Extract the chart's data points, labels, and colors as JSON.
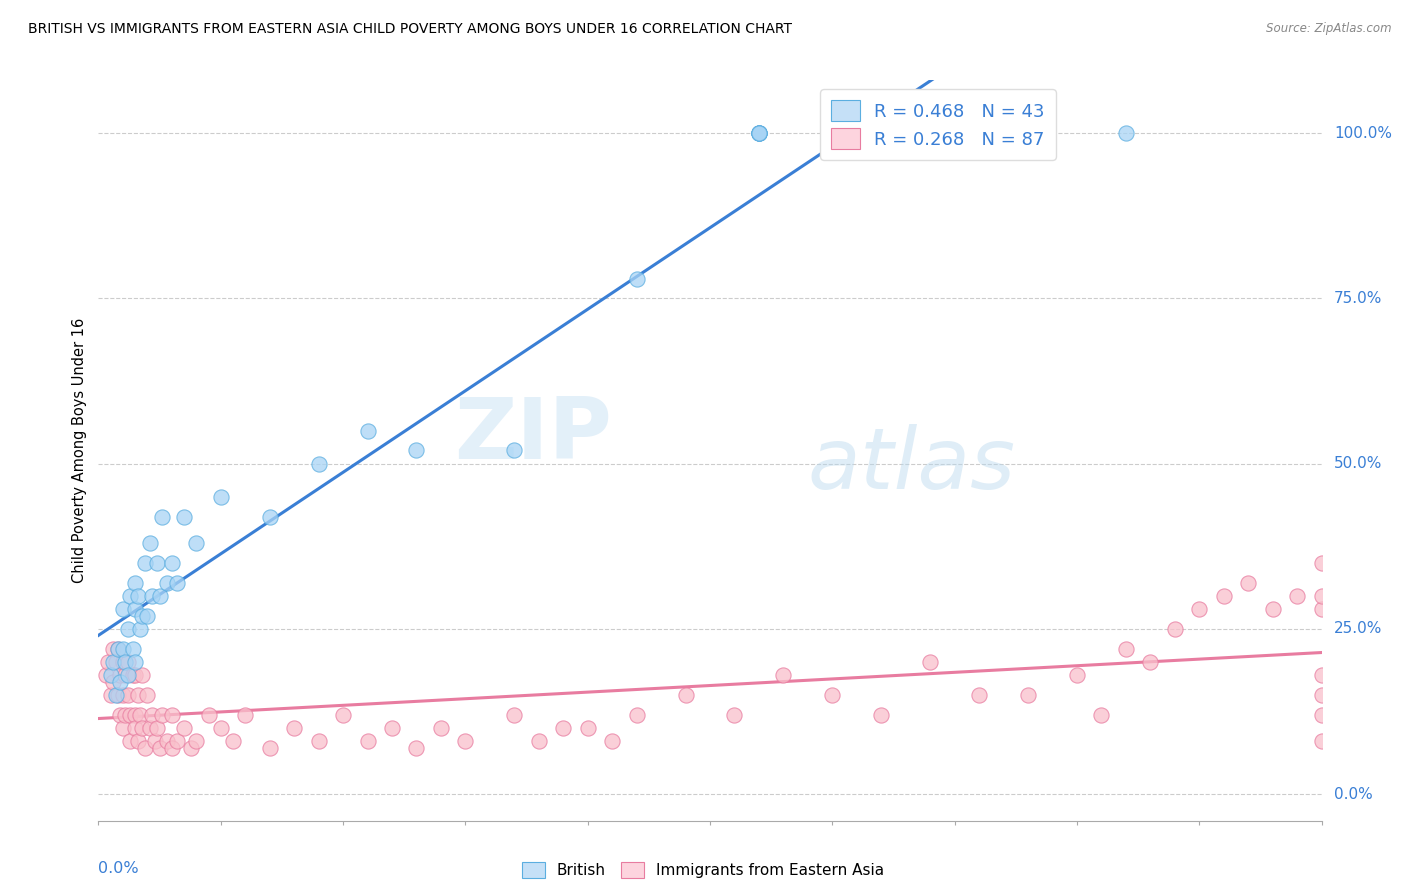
{
  "title": "BRITISH VS IMMIGRANTS FROM EASTERN ASIA CHILD POVERTY AMONG BOYS UNDER 16 CORRELATION CHART",
  "source": "Source: ZipAtlas.com",
  "ylabel": "Child Poverty Among Boys Under 16",
  "ylabel_right_ticks": [
    "0.0%",
    "25.0%",
    "50.0%",
    "75.0%",
    "100.0%"
  ],
  "ylabel_right_vals": [
    0.0,
    0.25,
    0.5,
    0.75,
    1.0
  ],
  "british_R": 0.468,
  "british_N": 43,
  "immigrants_R": 0.268,
  "immigrants_N": 87,
  "british_color": "#a8d4f5",
  "immigrants_color": "#f9c0cb",
  "british_edge_color": "#5baee0",
  "immigrants_edge_color": "#e87ca0",
  "british_line_color": "#3a7fd5",
  "immigrants_line_color": "#e87ca0",
  "watermark_zip": "ZIP",
  "watermark_atlas": "atlas",
  "xlim": [
    0.0,
    0.5
  ],
  "ylim": [
    -0.04,
    1.08
  ],
  "british_scatter_x": [
    0.005,
    0.006,
    0.007,
    0.008,
    0.009,
    0.01,
    0.01,
    0.011,
    0.012,
    0.012,
    0.013,
    0.014,
    0.015,
    0.015,
    0.015,
    0.016,
    0.017,
    0.018,
    0.019,
    0.02,
    0.021,
    0.022,
    0.024,
    0.025,
    0.026,
    0.028,
    0.03,
    0.032,
    0.035,
    0.04,
    0.05,
    0.07,
    0.09,
    0.11,
    0.13,
    0.17,
    0.22,
    0.27,
    0.27,
    0.27,
    0.27,
    0.27,
    0.42
  ],
  "british_scatter_y": [
    0.18,
    0.2,
    0.15,
    0.22,
    0.17,
    0.22,
    0.28,
    0.2,
    0.25,
    0.18,
    0.3,
    0.22,
    0.28,
    0.32,
    0.2,
    0.3,
    0.25,
    0.27,
    0.35,
    0.27,
    0.38,
    0.3,
    0.35,
    0.3,
    0.42,
    0.32,
    0.35,
    0.32,
    0.42,
    0.38,
    0.45,
    0.42,
    0.5,
    0.55,
    0.52,
    0.52,
    0.78,
    1.0,
    1.0,
    1.0,
    1.0,
    1.0,
    1.0
  ],
  "immigrants_scatter_x": [
    0.003,
    0.004,
    0.005,
    0.006,
    0.006,
    0.007,
    0.008,
    0.008,
    0.009,
    0.009,
    0.01,
    0.01,
    0.01,
    0.011,
    0.011,
    0.012,
    0.012,
    0.013,
    0.013,
    0.014,
    0.015,
    0.015,
    0.015,
    0.016,
    0.016,
    0.017,
    0.018,
    0.018,
    0.019,
    0.02,
    0.021,
    0.022,
    0.023,
    0.024,
    0.025,
    0.026,
    0.028,
    0.03,
    0.03,
    0.032,
    0.035,
    0.038,
    0.04,
    0.045,
    0.05,
    0.055,
    0.06,
    0.07,
    0.08,
    0.09,
    0.1,
    0.11,
    0.12,
    0.13,
    0.14,
    0.15,
    0.17,
    0.18,
    0.19,
    0.2,
    0.21,
    0.22,
    0.24,
    0.26,
    0.28,
    0.3,
    0.32,
    0.34,
    0.36,
    0.38,
    0.4,
    0.41,
    0.42,
    0.43,
    0.44,
    0.45,
    0.46,
    0.47,
    0.48,
    0.49,
    0.5,
    0.5,
    0.5,
    0.5,
    0.5,
    0.5,
    0.5
  ],
  "immigrants_scatter_y": [
    0.18,
    0.2,
    0.15,
    0.22,
    0.17,
    0.2,
    0.15,
    0.22,
    0.18,
    0.12,
    0.2,
    0.15,
    0.1,
    0.18,
    0.12,
    0.2,
    0.15,
    0.12,
    0.08,
    0.18,
    0.12,
    0.18,
    0.1,
    0.15,
    0.08,
    0.12,
    0.18,
    0.1,
    0.07,
    0.15,
    0.1,
    0.12,
    0.08,
    0.1,
    0.07,
    0.12,
    0.08,
    0.12,
    0.07,
    0.08,
    0.1,
    0.07,
    0.08,
    0.12,
    0.1,
    0.08,
    0.12,
    0.07,
    0.1,
    0.08,
    0.12,
    0.08,
    0.1,
    0.07,
    0.1,
    0.08,
    0.12,
    0.08,
    0.1,
    0.1,
    0.08,
    0.12,
    0.15,
    0.12,
    0.18,
    0.15,
    0.12,
    0.2,
    0.15,
    0.15,
    0.18,
    0.12,
    0.22,
    0.2,
    0.25,
    0.28,
    0.3,
    0.32,
    0.28,
    0.3,
    0.08,
    0.12,
    0.15,
    0.18,
    0.28,
    0.3,
    0.35
  ]
}
